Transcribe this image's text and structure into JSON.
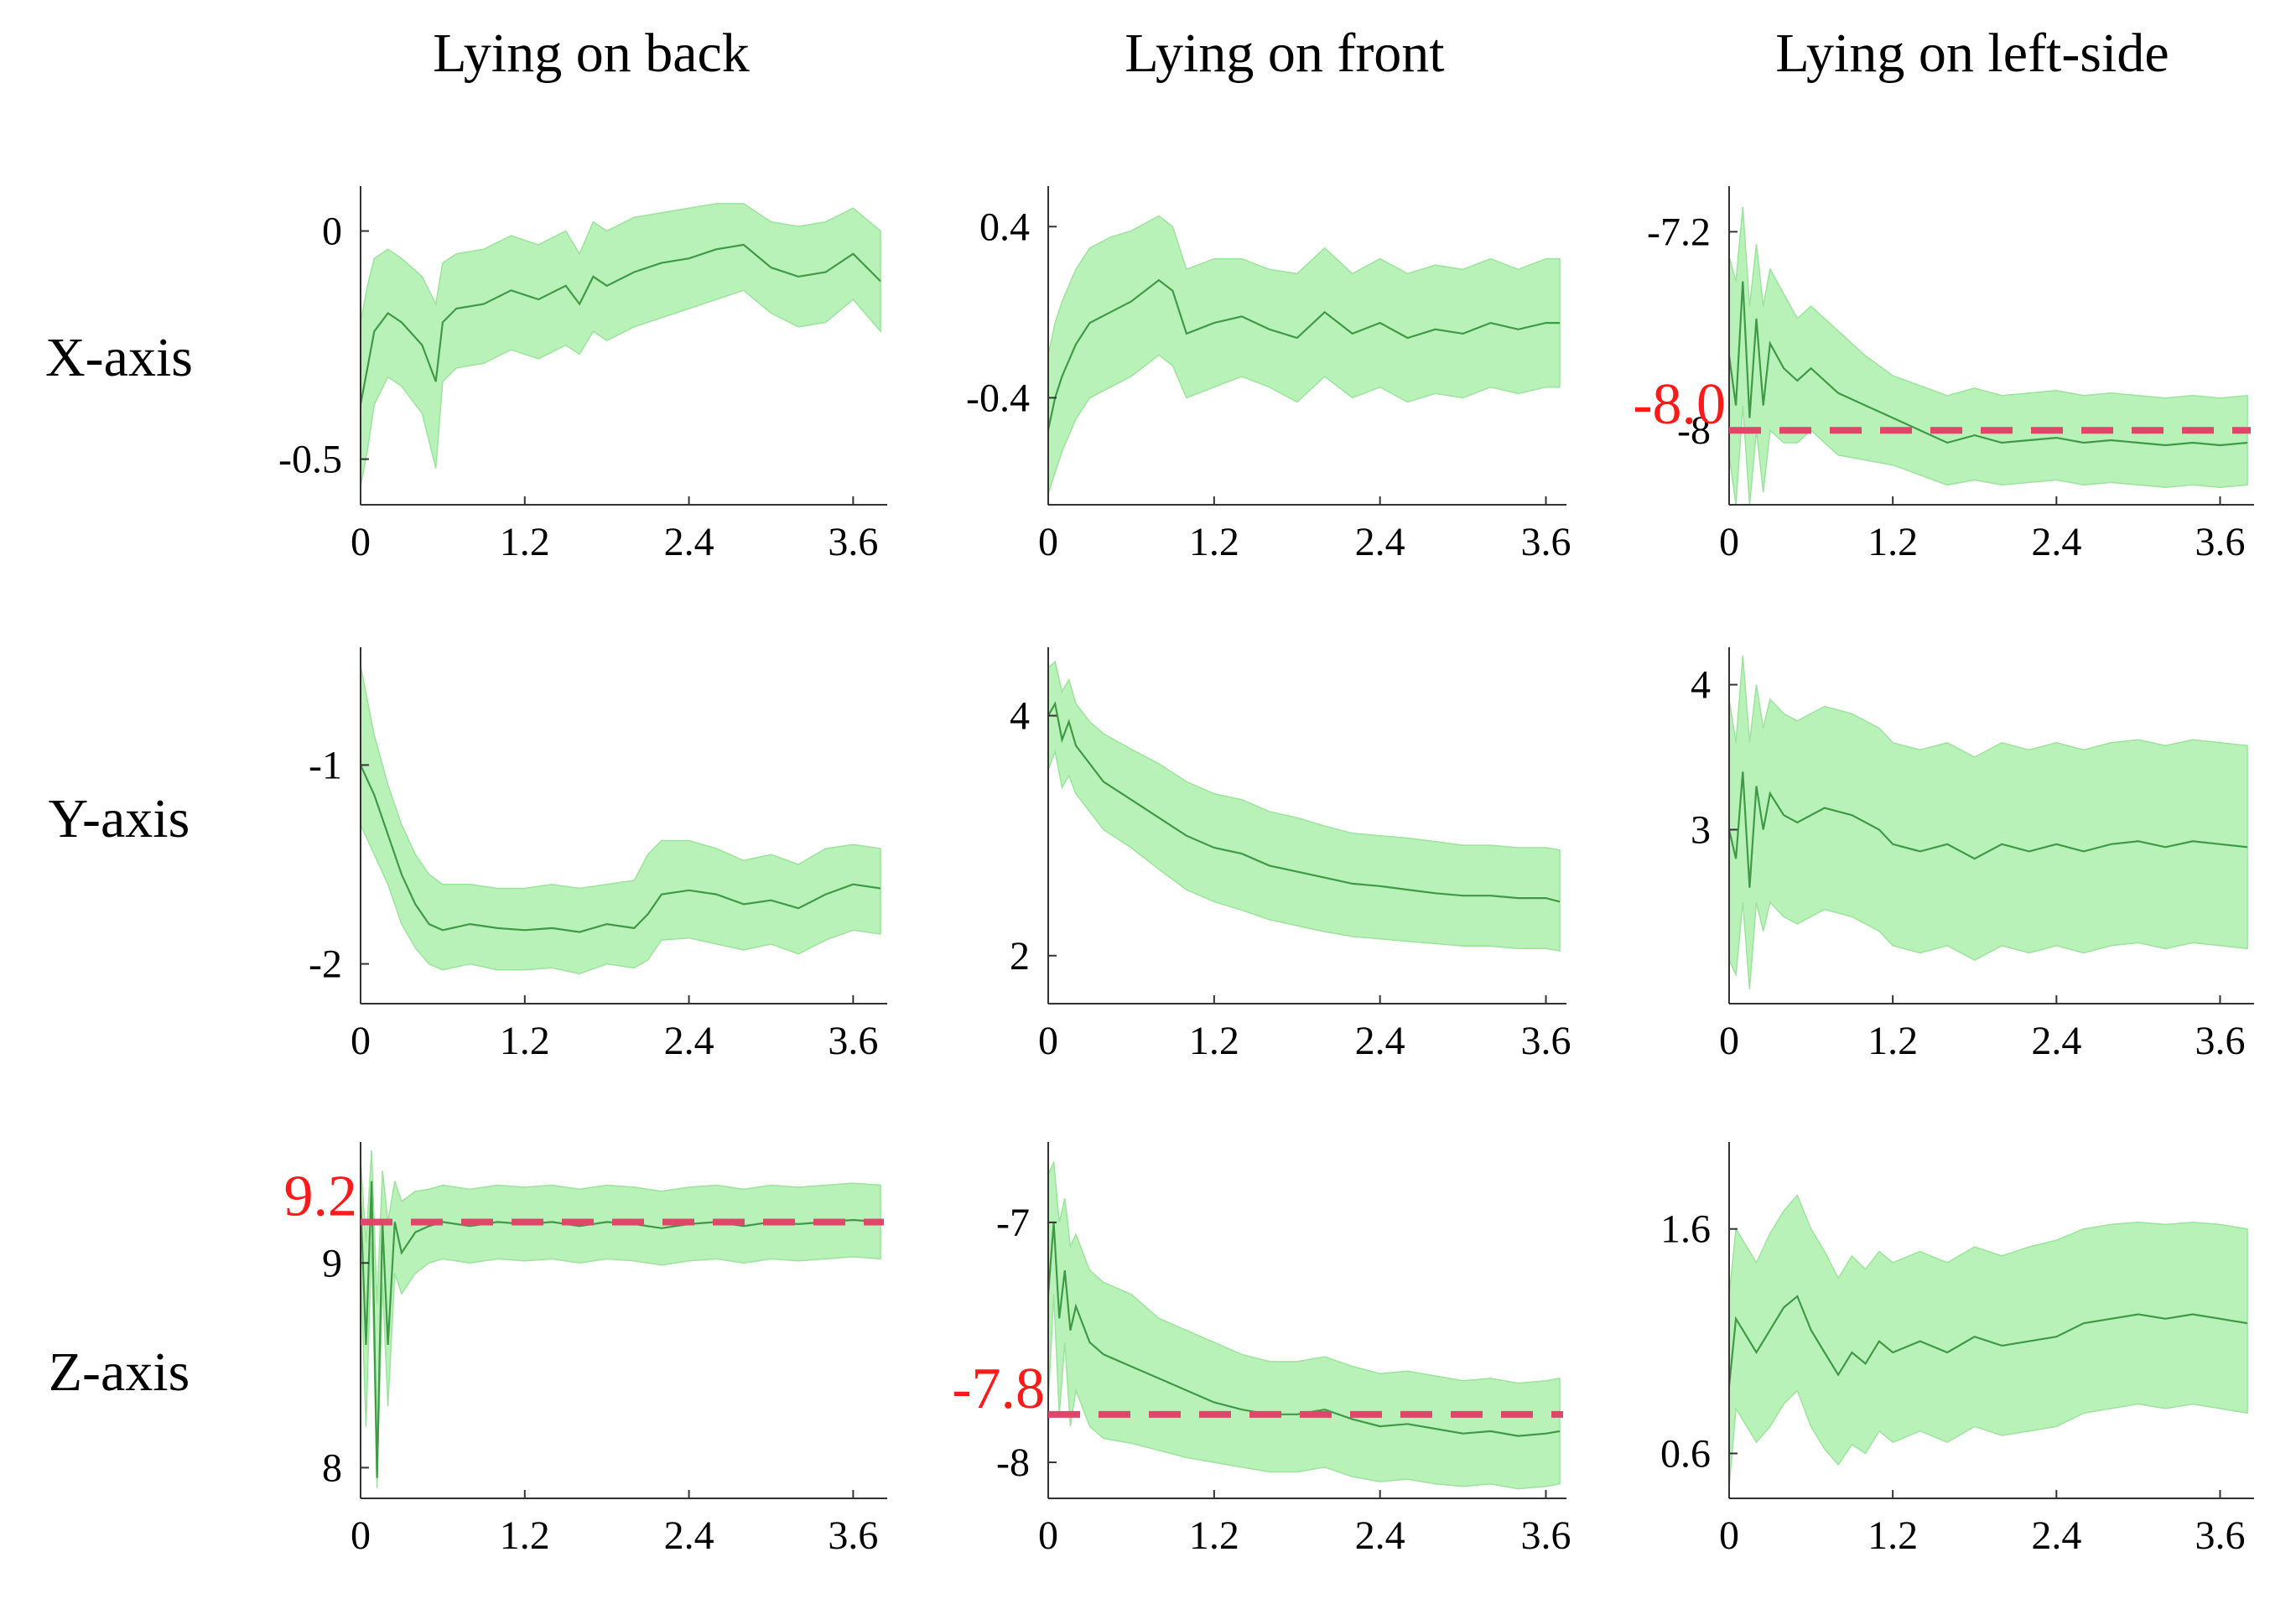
{
  "figure": {
    "columns": [
      "Lying on back",
      "Lying on front",
      "Lying on left-side"
    ],
    "rows": [
      "X-axis",
      "Y-axis",
      "Z-axis"
    ],
    "colors": {
      "band": "#b9f2b9",
      "band_edge": "#9be49b",
      "mean": "#3f9a45",
      "axis": "#333333",
      "reference": "#e0456a",
      "annotation": "#ff1a1a"
    }
  },
  "chart_data": [
    {
      "type": "area",
      "column": "Lying on back",
      "row": "X-axis",
      "xlim": [
        0,
        3.8
      ],
      "ylim": [
        -0.6,
        0.08
      ],
      "xticks": [
        0,
        1.2,
        2.4,
        3.6
      ],
      "xtick_labels": [
        "0",
        "1.2",
        "2.4",
        "3.6"
      ],
      "yticks": [
        0,
        -0.5
      ],
      "ytick_labels": [
        "0",
        "-0.5"
      ],
      "x": [
        0,
        0.05,
        0.1,
        0.2,
        0.3,
        0.45,
        0.55,
        0.6,
        0.7,
        0.9,
        1.1,
        1.3,
        1.5,
        1.6,
        1.7,
        1.8,
        2.0,
        2.2,
        2.4,
        2.6,
        2.8,
        3.0,
        3.2,
        3.4,
        3.6,
        3.8
      ],
      "mean": [
        -0.38,
        -0.3,
        -0.22,
        -0.18,
        -0.2,
        -0.25,
        -0.33,
        -0.2,
        -0.17,
        -0.16,
        -0.13,
        -0.15,
        -0.12,
        -0.16,
        -0.1,
        -0.12,
        -0.09,
        -0.07,
        -0.06,
        -0.04,
        -0.03,
        -0.08,
        -0.1,
        -0.09,
        -0.05,
        -0.11
      ],
      "upper": [
        -0.2,
        -0.12,
        -0.06,
        -0.04,
        -0.06,
        -0.1,
        -0.16,
        -0.07,
        -0.05,
        -0.04,
        -0.01,
        -0.03,
        0.0,
        -0.05,
        0.02,
        0.0,
        0.03,
        0.04,
        0.05,
        0.06,
        0.06,
        0.02,
        0.01,
        0.02,
        0.05,
        0.0
      ],
      "lower": [
        -0.56,
        -0.48,
        -0.38,
        -0.32,
        -0.34,
        -0.4,
        -0.52,
        -0.33,
        -0.3,
        -0.29,
        -0.26,
        -0.28,
        -0.25,
        -0.27,
        -0.22,
        -0.24,
        -0.21,
        -0.19,
        -0.17,
        -0.15,
        -0.13,
        -0.18,
        -0.21,
        -0.2,
        -0.15,
        -0.22
      ]
    },
    {
      "type": "area",
      "column": "Lying on front",
      "row": "X-axis",
      "xlim": [
        0,
        3.7
      ],
      "ylim": [
        -0.9,
        0.55
      ],
      "xticks": [
        0,
        1.2,
        2.4,
        3.6
      ],
      "xtick_labels": [
        "0",
        "1.2",
        "2.4",
        "3.6"
      ],
      "yticks": [
        0.4,
        -0.4
      ],
      "ytick_labels": [
        "0.4",
        "-0.4"
      ],
      "x": [
        0,
        0.05,
        0.1,
        0.2,
        0.3,
        0.45,
        0.6,
        0.8,
        0.9,
        1.0,
        1.2,
        1.4,
        1.6,
        1.8,
        2.0,
        2.2,
        2.4,
        2.6,
        2.8,
        3.0,
        3.2,
        3.4,
        3.6,
        3.7
      ],
      "mean": [
        -0.55,
        -0.4,
        -0.3,
        -0.15,
        -0.05,
        0.0,
        0.05,
        0.15,
        0.1,
        -0.1,
        -0.05,
        -0.02,
        -0.08,
        -0.12,
        0.0,
        -0.1,
        -0.05,
        -0.12,
        -0.08,
        -0.1,
        -0.05,
        -0.08,
        -0.05,
        -0.05
      ],
      "upper": [
        -0.2,
        -0.05,
        0.05,
        0.2,
        0.3,
        0.35,
        0.38,
        0.45,
        0.4,
        0.2,
        0.25,
        0.25,
        0.2,
        0.18,
        0.3,
        0.18,
        0.25,
        0.18,
        0.22,
        0.2,
        0.25,
        0.2,
        0.25,
        0.25
      ],
      "lower": [
        -0.85,
        -0.75,
        -0.65,
        -0.5,
        -0.4,
        -0.35,
        -0.3,
        -0.2,
        -0.25,
        -0.4,
        -0.35,
        -0.3,
        -0.35,
        -0.42,
        -0.3,
        -0.4,
        -0.35,
        -0.42,
        -0.38,
        -0.4,
        -0.35,
        -0.38,
        -0.35,
        -0.35
      ]
    },
    {
      "type": "area",
      "column": "Lying on left-side",
      "row": "X-axis",
      "xlim": [
        0,
        3.8
      ],
      "ylim": [
        -8.3,
        -7.05
      ],
      "xticks": [
        0,
        1.2,
        2.4,
        3.6
      ],
      "xtick_labels": [
        "0",
        "1.2",
        "2.4",
        "3.6"
      ],
      "yticks": [
        -7.2,
        -8.0
      ],
      "ytick_labels": [
        "-7.2",
        "-8"
      ],
      "reference": -8.0,
      "reference_label": "-8.0",
      "x": [
        0,
        0.05,
        0.1,
        0.15,
        0.2,
        0.25,
        0.3,
        0.4,
        0.5,
        0.6,
        0.8,
        1.0,
        1.2,
        1.4,
        1.6,
        1.8,
        2.0,
        2.2,
        2.4,
        2.6,
        2.8,
        3.0,
        3.2,
        3.4,
        3.6,
        3.8
      ],
      "mean": [
        -7.7,
        -7.9,
        -7.4,
        -7.95,
        -7.55,
        -7.9,
        -7.65,
        -7.75,
        -7.8,
        -7.75,
        -7.85,
        -7.9,
        -7.95,
        -8.0,
        -8.05,
        -8.02,
        -8.05,
        -8.04,
        -8.03,
        -8.05,
        -8.04,
        -8.05,
        -8.06,
        -8.05,
        -8.06,
        -8.05
      ],
      "upper": [
        -7.3,
        -7.4,
        -7.1,
        -7.5,
        -7.25,
        -7.5,
        -7.35,
        -7.45,
        -7.55,
        -7.5,
        -7.6,
        -7.7,
        -7.78,
        -7.82,
        -7.86,
        -7.83,
        -7.86,
        -7.85,
        -7.84,
        -7.86,
        -7.85,
        -7.86,
        -7.87,
        -7.86,
        -7.87,
        -7.86
      ],
      "lower": [
        -8.1,
        -8.3,
        -7.9,
        -8.3,
        -8.0,
        -8.25,
        -8.0,
        -8.05,
        -8.05,
        -8.0,
        -8.1,
        -8.12,
        -8.14,
        -8.18,
        -8.22,
        -8.2,
        -8.22,
        -8.21,
        -8.2,
        -8.22,
        -8.21,
        -8.22,
        -8.23,
        -8.22,
        -8.23,
        -8.22
      ]
    },
    {
      "type": "area",
      "column": "Lying on back",
      "row": "Y-axis",
      "xlim": [
        0,
        3.8
      ],
      "ylim": [
        -2.2,
        -0.45
      ],
      "xticks": [
        0,
        1.2,
        2.4,
        3.6
      ],
      "xtick_labels": [
        "0",
        "1.2",
        "2.4",
        "3.6"
      ],
      "yticks": [
        -1,
        -2
      ],
      "ytick_labels": [
        "-1",
        "-2"
      ],
      "x": [
        0,
        0.1,
        0.2,
        0.3,
        0.4,
        0.5,
        0.6,
        0.8,
        1.0,
        1.2,
        1.4,
        1.6,
        1.8,
        2.0,
        2.1,
        2.2,
        2.4,
        2.6,
        2.8,
        3.0,
        3.2,
        3.4,
        3.6,
        3.8
      ],
      "mean": [
        -1.0,
        -1.15,
        -1.35,
        -1.55,
        -1.7,
        -1.8,
        -1.83,
        -1.8,
        -1.82,
        -1.83,
        -1.82,
        -1.84,
        -1.8,
        -1.82,
        -1.75,
        -1.65,
        -1.63,
        -1.65,
        -1.7,
        -1.68,
        -1.72,
        -1.65,
        -1.6,
        -1.62
      ],
      "upper": [
        -0.5,
        -0.85,
        -1.1,
        -1.3,
        -1.45,
        -1.55,
        -1.6,
        -1.6,
        -1.62,
        -1.62,
        -1.6,
        -1.62,
        -1.6,
        -1.58,
        -1.45,
        -1.38,
        -1.38,
        -1.42,
        -1.48,
        -1.45,
        -1.5,
        -1.42,
        -1.4,
        -1.42
      ],
      "lower": [
        -1.3,
        -1.45,
        -1.6,
        -1.8,
        -1.92,
        -2.0,
        -2.03,
        -2.0,
        -2.03,
        -2.03,
        -2.02,
        -2.05,
        -2.0,
        -2.02,
        -1.98,
        -1.88,
        -1.87,
        -1.9,
        -1.93,
        -1.9,
        -1.95,
        -1.88,
        -1.83,
        -1.85
      ]
    },
    {
      "type": "area",
      "column": "Lying on front",
      "row": "Y-axis",
      "xlim": [
        0,
        3.7
      ],
      "ylim": [
        1.6,
        4.5
      ],
      "xticks": [
        0,
        1.2,
        2.4,
        3.6
      ],
      "xtick_labels": [
        "0",
        "1.2",
        "2.4",
        "3.6"
      ],
      "yticks": [
        4,
        2
      ],
      "ytick_labels": [
        "4",
        "2"
      ],
      "x": [
        0,
        0.05,
        0.1,
        0.15,
        0.2,
        0.3,
        0.4,
        0.6,
        0.8,
        1.0,
        1.2,
        1.4,
        1.6,
        1.8,
        2.0,
        2.2,
        2.4,
        2.6,
        2.8,
        3.0,
        3.2,
        3.4,
        3.6,
        3.7
      ],
      "mean": [
        4.0,
        4.1,
        3.8,
        3.95,
        3.75,
        3.6,
        3.45,
        3.3,
        3.15,
        3.0,
        2.9,
        2.85,
        2.75,
        2.7,
        2.65,
        2.6,
        2.58,
        2.55,
        2.52,
        2.5,
        2.5,
        2.48,
        2.48,
        2.45
      ],
      "upper": [
        4.4,
        4.45,
        4.2,
        4.3,
        4.1,
        3.95,
        3.85,
        3.72,
        3.6,
        3.45,
        3.35,
        3.3,
        3.2,
        3.15,
        3.08,
        3.02,
        3.0,
        2.98,
        2.95,
        2.92,
        2.92,
        2.9,
        2.9,
        2.88
      ],
      "lower": [
        3.55,
        3.7,
        3.4,
        3.5,
        3.35,
        3.2,
        3.05,
        2.9,
        2.72,
        2.55,
        2.45,
        2.38,
        2.3,
        2.25,
        2.2,
        2.16,
        2.14,
        2.12,
        2.1,
        2.08,
        2.08,
        2.06,
        2.06,
        2.04
      ]
    },
    {
      "type": "area",
      "column": "Lying on left-side",
      "row": "Y-axis",
      "xlim": [
        0,
        3.8
      ],
      "ylim": [
        1.8,
        4.2
      ],
      "xticks": [
        0,
        1.2,
        2.4,
        3.6
      ],
      "xtick_labels": [
        "0",
        "1.2",
        "2.4",
        "3.6"
      ],
      "yticks": [
        4,
        3
      ],
      "ytick_labels": [
        "4",
        "3"
      ],
      "x": [
        0,
        0.05,
        0.1,
        0.15,
        0.2,
        0.25,
        0.3,
        0.4,
        0.5,
        0.7,
        0.9,
        1.1,
        1.2,
        1.4,
        1.6,
        1.8,
        2.0,
        2.2,
        2.4,
        2.6,
        2.8,
        3.0,
        3.2,
        3.4,
        3.6,
        3.8
      ],
      "mean": [
        3.0,
        2.8,
        3.4,
        2.6,
        3.3,
        3.0,
        3.25,
        3.1,
        3.05,
        3.15,
        3.1,
        3.0,
        2.9,
        2.85,
        2.9,
        2.8,
        2.9,
        2.85,
        2.9,
        2.85,
        2.9,
        2.92,
        2.88,
        2.92,
        2.9,
        2.88
      ],
      "upper": [
        3.9,
        3.6,
        4.2,
        3.6,
        4.0,
        3.7,
        3.9,
        3.8,
        3.75,
        3.85,
        3.8,
        3.7,
        3.6,
        3.55,
        3.6,
        3.5,
        3.6,
        3.55,
        3.6,
        3.55,
        3.6,
        3.62,
        3.58,
        3.62,
        3.6,
        3.58
      ],
      "lower": [
        2.1,
        2.0,
        2.5,
        1.9,
        2.5,
        2.3,
        2.5,
        2.4,
        2.35,
        2.45,
        2.4,
        2.3,
        2.2,
        2.15,
        2.2,
        2.1,
        2.2,
        2.15,
        2.2,
        2.15,
        2.2,
        2.22,
        2.18,
        2.22,
        2.2,
        2.18
      ]
    },
    {
      "type": "area",
      "column": "Lying on back",
      "row": "Z-axis",
      "xlim": [
        0,
        3.8
      ],
      "ylim": [
        7.85,
        9.55
      ],
      "xticks": [
        0,
        1.2,
        2.4,
        3.6
      ],
      "xtick_labels": [
        "0",
        "1.2",
        "2.4",
        "3.6"
      ],
      "yticks": [
        9,
        8
      ],
      "ytick_labels": [
        "9",
        "8"
      ],
      "reference": 9.2,
      "reference_label": "9.2",
      "x": [
        0,
        0.04,
        0.08,
        0.12,
        0.16,
        0.2,
        0.25,
        0.3,
        0.4,
        0.5,
        0.6,
        0.8,
        1.0,
        1.2,
        1.4,
        1.6,
        1.8,
        2.0,
        2.2,
        2.4,
        2.6,
        2.8,
        3.0,
        3.2,
        3.4,
        3.6,
        3.8
      ],
      "mean": [
        9.3,
        8.6,
        9.4,
        7.95,
        9.2,
        8.6,
        9.2,
        9.05,
        9.15,
        9.18,
        9.2,
        9.18,
        9.2,
        9.19,
        9.2,
        9.18,
        9.2,
        9.19,
        9.17,
        9.19,
        9.2,
        9.18,
        9.2,
        9.19,
        9.2,
        9.21,
        9.2
      ],
      "upper": [
        9.5,
        9.1,
        9.55,
        8.8,
        9.45,
        9.2,
        9.4,
        9.3,
        9.35,
        9.36,
        9.38,
        9.36,
        9.38,
        9.37,
        9.38,
        9.36,
        9.38,
        9.37,
        9.35,
        9.37,
        9.38,
        9.36,
        9.38,
        9.37,
        9.38,
        9.39,
        9.38
      ],
      "lower": [
        9.0,
        8.2,
        9.1,
        7.9,
        8.9,
        8.3,
        8.95,
        8.85,
        8.95,
        9.0,
        9.02,
        9.0,
        9.02,
        9.01,
        9.02,
        9.0,
        9.02,
        9.01,
        8.99,
        9.01,
        9.02,
        9.0,
        9.02,
        9.01,
        9.02,
        9.03,
        9.02
      ]
    },
    {
      "type": "area",
      "column": "Lying on front",
      "row": "Z-axis",
      "xlim": [
        0,
        3.7
      ],
      "ylim": [
        -8.15,
        -6.7
      ],
      "xticks": [
        0,
        1.2,
        2.4,
        3.6
      ],
      "xtick_labels": [
        "0",
        "1.2",
        "2.4",
        "3.6"
      ],
      "yticks": [
        -7,
        -8
      ],
      "ytick_labels": [
        "-7",
        "-8"
      ],
      "reference": -7.8,
      "reference_label": "-7.8",
      "x": [
        0,
        0.04,
        0.08,
        0.12,
        0.16,
        0.2,
        0.3,
        0.4,
        0.6,
        0.8,
        1.0,
        1.2,
        1.4,
        1.6,
        1.8,
        2.0,
        2.2,
        2.4,
        2.6,
        2.8,
        3.0,
        3.2,
        3.4,
        3.6,
        3.7
      ],
      "mean": [
        -7.3,
        -7.0,
        -7.4,
        -7.2,
        -7.45,
        -7.35,
        -7.5,
        -7.55,
        -7.6,
        -7.65,
        -7.7,
        -7.75,
        -7.78,
        -7.8,
        -7.8,
        -7.78,
        -7.82,
        -7.85,
        -7.84,
        -7.86,
        -7.88,
        -7.87,
        -7.89,
        -7.88,
        -7.87
      ],
      "upper": [
        -6.8,
        -6.75,
        -7.0,
        -6.9,
        -7.1,
        -7.05,
        -7.2,
        -7.25,
        -7.3,
        -7.4,
        -7.45,
        -7.5,
        -7.55,
        -7.58,
        -7.58,
        -7.56,
        -7.6,
        -7.63,
        -7.62,
        -7.64,
        -7.66,
        -7.65,
        -7.67,
        -7.66,
        -7.65
      ],
      "lower": [
        -7.75,
        -7.3,
        -7.8,
        -7.5,
        -7.85,
        -7.7,
        -7.85,
        -7.9,
        -7.92,
        -7.95,
        -7.98,
        -8.0,
        -8.02,
        -8.04,
        -8.04,
        -8.02,
        -8.06,
        -8.08,
        -8.07,
        -8.09,
        -8.1,
        -8.09,
        -8.11,
        -8.1,
        -8.09
      ]
    },
    {
      "type": "area",
      "column": "Lying on left-side",
      "row": "Z-axis",
      "xlim": [
        0,
        3.8
      ],
      "ylim": [
        0.4,
        1.95
      ],
      "xticks": [
        0,
        1.2,
        2.4,
        3.6
      ],
      "xtick_labels": [
        "0",
        "1.2",
        "2.4",
        "3.6"
      ],
      "yticks": [
        1.6,
        0.6
      ],
      "ytick_labels": [
        "1.6",
        "0.6"
      ],
      "x": [
        0,
        0.05,
        0.1,
        0.2,
        0.3,
        0.4,
        0.5,
        0.6,
        0.7,
        0.8,
        0.9,
        1.0,
        1.1,
        1.2,
        1.4,
        1.6,
        1.8,
        2.0,
        2.2,
        2.4,
        2.6,
        2.8,
        3.0,
        3.2,
        3.4,
        3.6,
        3.8
      ],
      "mean": [
        0.9,
        1.2,
        1.15,
        1.05,
        1.15,
        1.25,
        1.3,
        1.15,
        1.05,
        0.95,
        1.05,
        1.0,
        1.1,
        1.05,
        1.1,
        1.05,
        1.12,
        1.08,
        1.1,
        1.12,
        1.18,
        1.2,
        1.22,
        1.2,
        1.22,
        1.2,
        1.18
      ],
      "upper": [
        1.3,
        1.6,
        1.55,
        1.45,
        1.58,
        1.68,
        1.75,
        1.6,
        1.5,
        1.38,
        1.48,
        1.42,
        1.5,
        1.45,
        1.5,
        1.45,
        1.52,
        1.48,
        1.52,
        1.55,
        1.6,
        1.62,
        1.63,
        1.62,
        1.63,
        1.62,
        1.6
      ],
      "lower": [
        0.45,
        0.8,
        0.75,
        0.65,
        0.72,
        0.82,
        0.88,
        0.72,
        0.62,
        0.55,
        0.64,
        0.6,
        0.7,
        0.65,
        0.7,
        0.65,
        0.72,
        0.68,
        0.7,
        0.72,
        0.78,
        0.8,
        0.82,
        0.8,
        0.82,
        0.8,
        0.78
      ]
    }
  ]
}
